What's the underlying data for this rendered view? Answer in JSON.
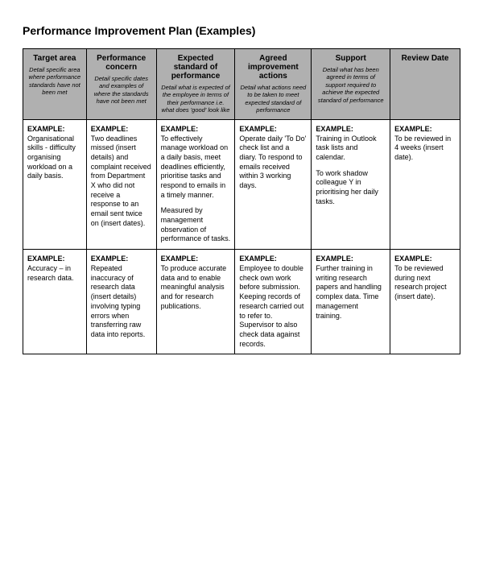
{
  "title": "Performance Improvement Plan (Examples)",
  "table": {
    "header_bg": "#b0b0b0",
    "border_color": "#000000",
    "text_color": "#000000",
    "columns": [
      {
        "header": "Target area",
        "desc": "Detail specific area where performance standards have not been met"
      },
      {
        "header": "Performance concern",
        "desc": "Detail specific dates and examples of where the standards have not been met"
      },
      {
        "header": "Expected standard of performance",
        "desc": "Detail what is expected of the employee in terms of their performance i.e. what does 'good' look like"
      },
      {
        "header": "Agreed improvement actions",
        "desc": "Detail what actions need to be taken to meet expected standard of performance"
      },
      {
        "header": "Support",
        "desc": "Detail what has been agreed in terms of support required to achieve the expected standard of performance"
      },
      {
        "header": "Review Date",
        "desc": ""
      }
    ],
    "rows": [
      [
        {
          "label": "EXAMPLE:",
          "paras": [
            "Organisational skills - difficulty organising workload on a daily basis."
          ]
        },
        {
          "label": "EXAMPLE:",
          "paras": [
            "Two deadlines missed (insert details) and complaint received from Department X who did not receive a response to an email sent twice on (insert dates)."
          ]
        },
        {
          "label": "EXAMPLE:",
          "paras": [
            "To effectively manage workload on a daily basis, meet deadlines efficiently, prioritise tasks and respond to emails in a timely manner.",
            "Measured by management observation of performance of tasks."
          ]
        },
        {
          "label": "EXAMPLE:",
          "paras": [
            "Operate daily 'To Do' check list and a diary. To respond to emails received within 3 working days."
          ]
        },
        {
          "label": "EXAMPLE:",
          "paras": [
            "Training in Outlook task lists and calendar.",
            "To work shadow colleague Y in prioritising her daily tasks."
          ]
        },
        {
          "label": "EXAMPLE:",
          "paras": [
            "To be reviewed in 4 weeks (insert date)."
          ]
        }
      ],
      [
        {
          "label": "EXAMPLE:",
          "paras": [
            "Accuracy – in research data."
          ]
        },
        {
          "label": "EXAMPLE:",
          "paras": [
            "Repeated inaccuracy of research data (insert details) involving typing errors when transferring raw data into reports."
          ]
        },
        {
          "label": "EXAMPLE:",
          "paras": [
            "To produce accurate data and to enable meaningful analysis and for research publications."
          ]
        },
        {
          "label": "EXAMPLE:",
          "paras": [
            "Employee to double check own work before submission. Keeping records of research carried out to refer to. Supervisor to also check data against records."
          ]
        },
        {
          "label": "EXAMPLE:",
          "paras": [
            "Further training in writing research papers and handling complex data. Time management training."
          ]
        },
        {
          "label": "EXAMPLE:",
          "paras": [
            "To be reviewed during next research project (insert date)."
          ]
        }
      ]
    ]
  }
}
